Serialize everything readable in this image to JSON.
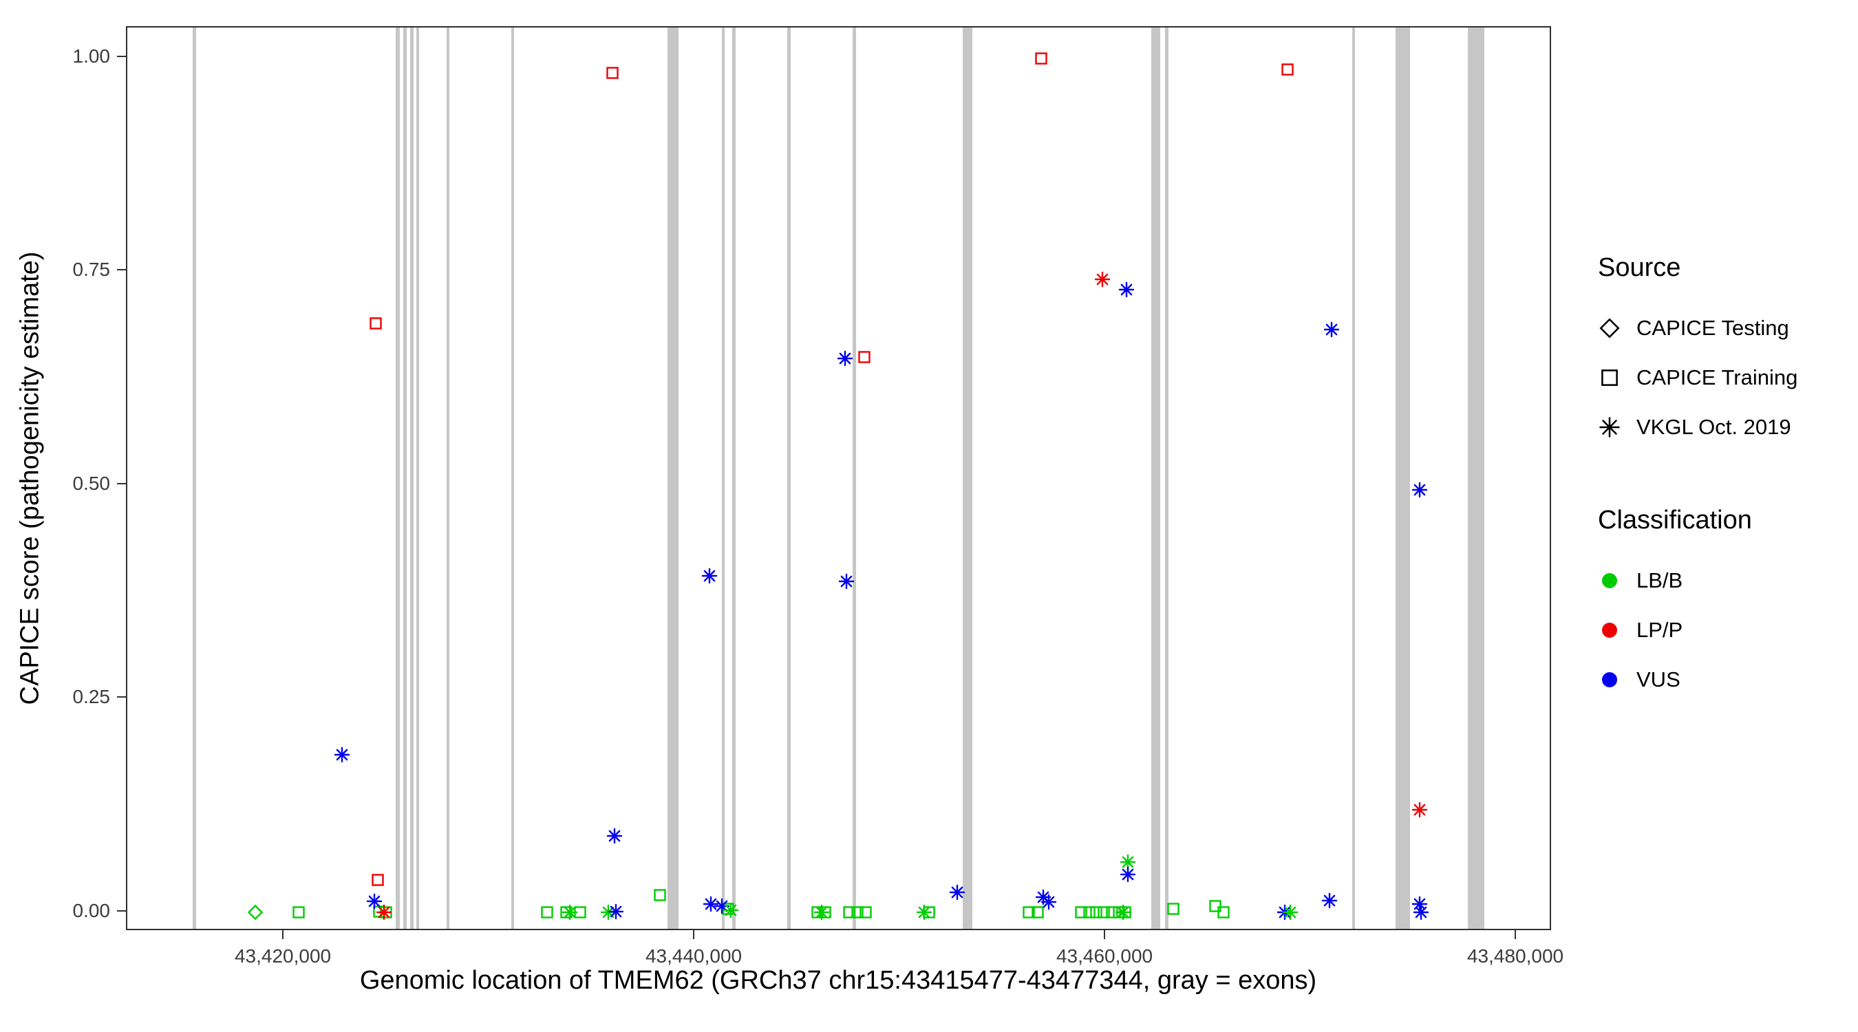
{
  "figure": {
    "x_axis_title": "Genomic location of TMEM62 (GRCh37 chr15:43415477-43477344, gray = exons)",
    "y_axis_title": "CAPICE score (pathogenicity estimate)"
  },
  "legend": {
    "source": {
      "title": "Source",
      "items": [
        {
          "label": "CAPICE Testing",
          "shape": "diamond"
        },
        {
          "label": "CAPICE Training",
          "shape": "square"
        },
        {
          "label": "VKGL Oct. 2019",
          "shape": "asterisk"
        }
      ]
    },
    "classification": {
      "title": "Classification",
      "items": [
        {
          "label": "LB/B",
          "color": "#00CD00"
        },
        {
          "label": "LP/P",
          "color": "#EE0000"
        },
        {
          "label": "VUS",
          "color": "#0000EE"
        }
      ]
    }
  },
  "chart_data": {
    "type": "scatter",
    "title": "",
    "xlabel": "Genomic location of TMEM62 (GRCh37 chr15:43415477-43477344, gray = exons)",
    "ylabel": "CAPICE score (pathogenicity estimate)",
    "xlim": [
      43412360,
      43481740
    ],
    "ylim": [
      -0.0226,
      1.0354
    ],
    "grid": false,
    "legend_position": "right",
    "exon_color": "#C6C6C6",
    "class_colors": {
      "LB/B": "#00CD00",
      "LP/P": "#EE0000",
      "VUS": "#0000EE"
    },
    "x_ticks": [
      {
        "value": 43420000,
        "label": "43,420,000"
      },
      {
        "value": 43440000,
        "label": "43,440,000"
      },
      {
        "value": 43460000,
        "label": "43,460,000"
      },
      {
        "value": 43480000,
        "label": "43,480,000"
      }
    ],
    "y_ticks": [
      {
        "value": 0.0,
        "label": "0.00"
      },
      {
        "value": 0.25,
        "label": "0.25"
      },
      {
        "value": 0.5,
        "label": "0.50"
      },
      {
        "value": 0.75,
        "label": "0.75"
      },
      {
        "value": 1.0,
        "label": "1.00"
      }
    ],
    "exons": [
      {
        "start": 43415550,
        "end": 43415680
      },
      {
        "start": 43425440,
        "end": 43425610
      },
      {
        "start": 43425790,
        "end": 43425960
      },
      {
        "start": 43426140,
        "end": 43426260
      },
      {
        "start": 43426430,
        "end": 43426550
      },
      {
        "start": 43427890,
        "end": 43428010
      },
      {
        "start": 43431050,
        "end": 43431170
      },
      {
        "start": 43438650,
        "end": 43439180
      },
      {
        "start": 43441290,
        "end": 43441400
      },
      {
        "start": 43441810,
        "end": 43441930
      },
      {
        "start": 43444500,
        "end": 43444620
      },
      {
        "start": 43447660,
        "end": 43447840
      },
      {
        "start": 43453040,
        "end": 43453510
      },
      {
        "start": 43462220,
        "end": 43462630
      },
      {
        "start": 43462870,
        "end": 43463040
      },
      {
        "start": 43471990,
        "end": 43472110
      },
      {
        "start": 43474100,
        "end": 43474800
      },
      {
        "start": 43477610,
        "end": 43478430
      }
    ],
    "points": [
      {
        "x": 43418600,
        "y": 0.0,
        "source": "CAPICE Testing",
        "class": "LB/B"
      },
      {
        "x": 43420700,
        "y": 0.0,
        "source": "CAPICE Training",
        "class": "LB/B"
      },
      {
        "x": 43424450,
        "y": 0.689,
        "source": "CAPICE Training",
        "class": "LP/P"
      },
      {
        "x": 43424560,
        "y": 0.038,
        "source": "CAPICE Training",
        "class": "LP/P"
      },
      {
        "x": 43424620,
        "y": 0.001,
        "source": "CAPICE Training",
        "class": "LB/B"
      },
      {
        "x": 43424970,
        "y": 0.0,
        "source": "CAPICE Training",
        "class": "LB/B"
      },
      {
        "x": 43432800,
        "y": 0.0,
        "source": "CAPICE Training",
        "class": "LB/B"
      },
      {
        "x": 43433750,
        "y": 0.0,
        "source": "CAPICE Training",
        "class": "LB/B"
      },
      {
        "x": 43434400,
        "y": 0.0,
        "source": "CAPICE Training",
        "class": "LB/B"
      },
      {
        "x": 43435970,
        "y": 0.982,
        "source": "CAPICE Training",
        "class": "LP/P"
      },
      {
        "x": 43438300,
        "y": 0.02,
        "source": "CAPICE Training",
        "class": "LB/B"
      },
      {
        "x": 43441600,
        "y": 0.004,
        "source": "CAPICE Training",
        "class": "LB/B"
      },
      {
        "x": 43445970,
        "y": 0.0,
        "source": "CAPICE Training",
        "class": "LB/B"
      },
      {
        "x": 43446320,
        "y": 0.0,
        "source": "CAPICE Training",
        "class": "LB/B"
      },
      {
        "x": 43447490,
        "y": 0.0,
        "source": "CAPICE Training",
        "class": "LB/B"
      },
      {
        "x": 43447900,
        "y": 0.0,
        "source": "CAPICE Training",
        "class": "LB/B"
      },
      {
        "x": 43448250,
        "y": 0.65,
        "source": "CAPICE Training",
        "class": "LP/P"
      },
      {
        "x": 43448310,
        "y": 0.0,
        "source": "CAPICE Training",
        "class": "LB/B"
      },
      {
        "x": 43451400,
        "y": 0.0,
        "source": "CAPICE Training",
        "class": "LB/B"
      },
      {
        "x": 43456260,
        "y": 0.0,
        "source": "CAPICE Training",
        "class": "LB/B"
      },
      {
        "x": 43456670,
        "y": 0.0,
        "source": "CAPICE Training",
        "class": "LB/B"
      },
      {
        "x": 43456850,
        "y": 0.999,
        "source": "CAPICE Training",
        "class": "LP/P"
      },
      {
        "x": 43458780,
        "y": 0.0,
        "source": "CAPICE Training",
        "class": "LB/B"
      },
      {
        "x": 43459190,
        "y": 0.0,
        "source": "CAPICE Training",
        "class": "LB/B"
      },
      {
        "x": 43459540,
        "y": 0.0,
        "source": "CAPICE Training",
        "class": "LB/B"
      },
      {
        "x": 43459890,
        "y": 0.0,
        "source": "CAPICE Training",
        "class": "LB/B"
      },
      {
        "x": 43460300,
        "y": 0.0,
        "source": "CAPICE Training",
        "class": "LB/B"
      },
      {
        "x": 43460650,
        "y": 0.0,
        "source": "CAPICE Training",
        "class": "LB/B"
      },
      {
        "x": 43460950,
        "y": 0.0,
        "source": "CAPICE Training",
        "class": "LB/B"
      },
      {
        "x": 43463280,
        "y": 0.004,
        "source": "CAPICE Training",
        "class": "LB/B"
      },
      {
        "x": 43465330,
        "y": 0.007,
        "source": "CAPICE Training",
        "class": "LB/B"
      },
      {
        "x": 43465740,
        "y": 0.0,
        "source": "CAPICE Training",
        "class": "LB/B"
      },
      {
        "x": 43468840,
        "y": 0.986,
        "source": "CAPICE Training",
        "class": "LP/P"
      },
      {
        "x": 43422810,
        "y": 0.184,
        "source": "VKGL Oct. 2019",
        "class": "VUS"
      },
      {
        "x": 43424390,
        "y": 0.013,
        "source": "VKGL Oct. 2019",
        "class": "VUS"
      },
      {
        "x": 43424850,
        "y": 0.0,
        "source": "VKGL Oct. 2019",
        "class": "LP/P"
      },
      {
        "x": 43433900,
        "y": 0.0,
        "source": "VKGL Oct. 2019",
        "class": "LB/B"
      },
      {
        "x": 43435790,
        "y": 0.0,
        "source": "VKGL Oct. 2019",
        "class": "LB/B"
      },
      {
        "x": 43436080,
        "y": 0.089,
        "source": "VKGL Oct. 2019",
        "class": "VUS"
      },
      {
        "x": 43436140,
        "y": 0.001,
        "source": "VKGL Oct. 2019",
        "class": "VUS"
      },
      {
        "x": 43440700,
        "y": 0.394,
        "source": "VKGL Oct. 2019",
        "class": "VUS"
      },
      {
        "x": 43440760,
        "y": 0.01,
        "source": "VKGL Oct. 2019",
        "class": "VUS"
      },
      {
        "x": 43441290,
        "y": 0.007,
        "source": "VKGL Oct. 2019",
        "class": "VUS"
      },
      {
        "x": 43441750,
        "y": 0.002,
        "source": "VKGL Oct. 2019",
        "class": "LB/B"
      },
      {
        "x": 43446150,
        "y": 0.0,
        "source": "VKGL Oct. 2019",
        "class": "LB/B"
      },
      {
        "x": 43447310,
        "y": 0.648,
        "source": "VKGL Oct. 2019",
        "class": "VUS"
      },
      {
        "x": 43447370,
        "y": 0.387,
        "source": "VKGL Oct. 2019",
        "class": "VUS"
      },
      {
        "x": 43451170,
        "y": 0.0,
        "source": "VKGL Oct. 2019",
        "class": "LB/B"
      },
      {
        "x": 43452750,
        "y": 0.023,
        "source": "VKGL Oct. 2019",
        "class": "VUS"
      },
      {
        "x": 43456960,
        "y": 0.018,
        "source": "VKGL Oct. 2019",
        "class": "VUS"
      },
      {
        "x": 43457230,
        "y": 0.012,
        "source": "VKGL Oct. 2019",
        "class": "VUS"
      },
      {
        "x": 43459830,
        "y": 0.741,
        "source": "VKGL Oct. 2019",
        "class": "LP/P"
      },
      {
        "x": 43460830,
        "y": 0.0,
        "source": "VKGL Oct. 2019",
        "class": "LB/B"
      },
      {
        "x": 43461000,
        "y": 0.729,
        "source": "VKGL Oct. 2019",
        "class": "VUS"
      },
      {
        "x": 43461060,
        "y": 0.059,
        "source": "VKGL Oct. 2019",
        "class": "LB/B"
      },
      {
        "x": 43461060,
        "y": 0.044,
        "source": "VKGL Oct. 2019",
        "class": "VUS"
      },
      {
        "x": 43468720,
        "y": 0.0,
        "source": "VKGL Oct. 2019",
        "class": "VUS"
      },
      {
        "x": 43468960,
        "y": 0.0,
        "source": "VKGL Oct. 2019",
        "class": "LB/B"
      },
      {
        "x": 43470880,
        "y": 0.014,
        "source": "VKGL Oct. 2019",
        "class": "VUS"
      },
      {
        "x": 43471000,
        "y": 0.682,
        "source": "VKGL Oct. 2019",
        "class": "VUS"
      },
      {
        "x": 43475270,
        "y": 0.494,
        "source": "VKGL Oct. 2019",
        "class": "VUS"
      },
      {
        "x": 43475270,
        "y": 0.12,
        "source": "VKGL Oct. 2019",
        "class": "LP/P"
      },
      {
        "x": 43475270,
        "y": 0.01,
        "source": "VKGL Oct. 2019",
        "class": "VUS"
      },
      {
        "x": 43475330,
        "y": 0.0,
        "source": "VKGL Oct. 2019",
        "class": "VUS"
      }
    ]
  }
}
